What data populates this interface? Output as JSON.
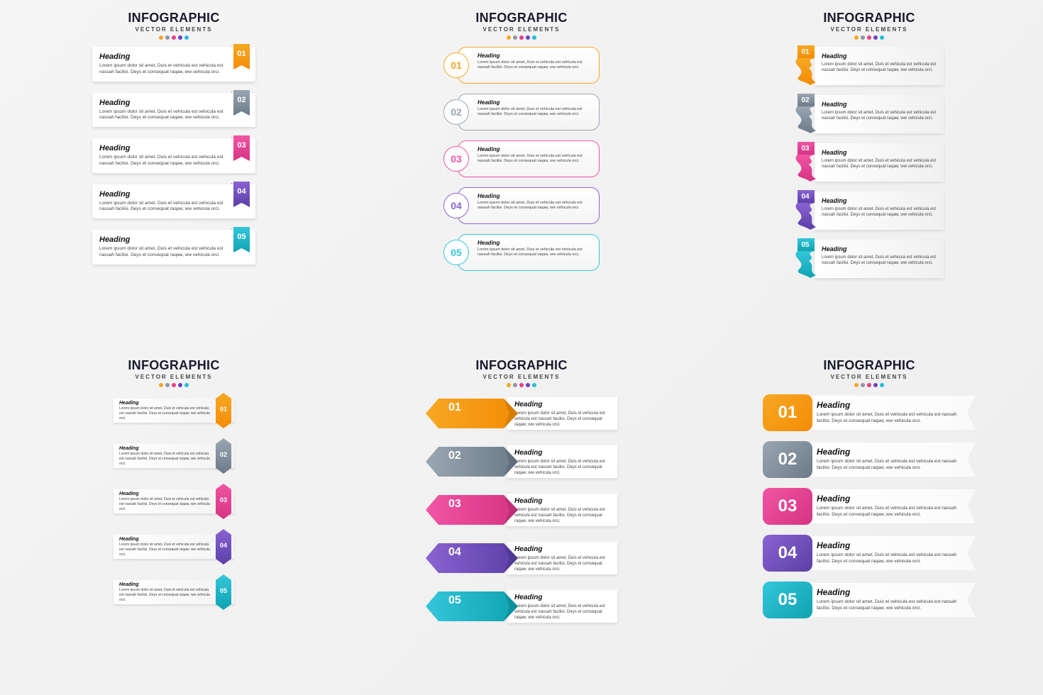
{
  "global": {
    "title": "INFOGRAPHIC",
    "subtitle": "VECTOR ELEMENTS",
    "dot_colors": [
      "#f7a823",
      "#8c98a4",
      "#e83e8c",
      "#6f42c1",
      "#20c0d8"
    ],
    "background_color": "#f2f2f2",
    "heading_text": "Heading",
    "body_text": "Lorem ipsum dolor sit amet, Duis et vehicula est vehicula est nassah facilisi. Deys et consequat raqaw, ww vehicula orci.",
    "steps": [
      {
        "num": "01",
        "c1": "#f7a823",
        "c2": "#f48c06"
      },
      {
        "num": "02",
        "c1": "#9aa6b2",
        "c2": "#6c7a89"
      },
      {
        "num": "03",
        "c1": "#f155a4",
        "c2": "#d63384"
      },
      {
        "num": "04",
        "c1": "#8a63d2",
        "c2": "#5b3fa7"
      },
      {
        "num": "05",
        "c1": "#34c6da",
        "c2": "#0fa3b1"
      }
    ]
  },
  "panels": {
    "A": {
      "type": "infographic",
      "style": "ribbon-bookmark-right",
      "card_bg": "#ffffff",
      "heading_fontsize": 11,
      "body_fontsize": 6.5,
      "num_color": "#ffffff"
    },
    "B": {
      "type": "infographic",
      "style": "outline-rounded-circle-left",
      "border_width": 1.5,
      "heading_fontsize": 8,
      "body_fontsize": 5.5,
      "num_fontsize": 14
    },
    "C": {
      "type": "infographic",
      "style": "curvy-ribbon-left",
      "heading_fontsize": 9,
      "body_fontsize": 6,
      "num_color": "#ffffff",
      "num_fontsize": 10
    },
    "D": {
      "type": "infographic",
      "style": "vertical-hex-right",
      "heading_fontsize": 7,
      "body_fontsize": 5,
      "num_color": "#ffffff",
      "num_fontsize": 9
    },
    "E": {
      "type": "infographic",
      "style": "arrow-badge-left",
      "heading_fontsize": 10,
      "body_fontsize": 6,
      "num_color": "#ffffff",
      "num_fontsize": 16
    },
    "F": {
      "type": "infographic",
      "style": "pill-left-notched-banner",
      "heading_fontsize": 12,
      "body_fontsize": 6.5,
      "num_color": "#ffffff",
      "num_fontsize": 24,
      "pill_radius": 10
    }
  }
}
